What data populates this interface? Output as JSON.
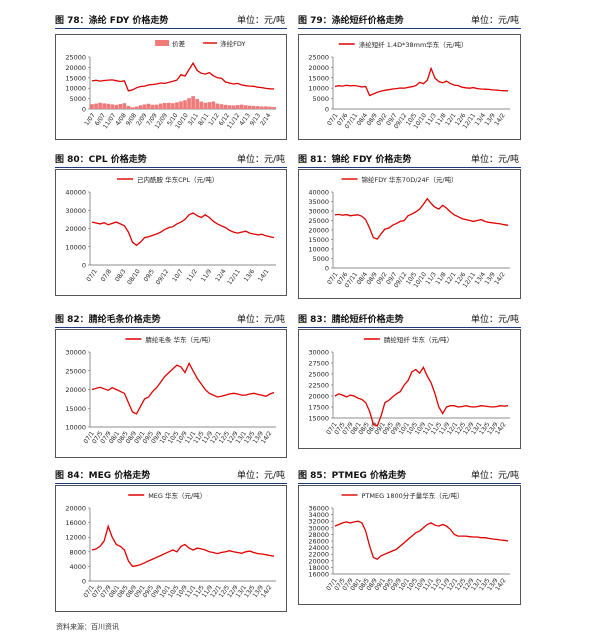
{
  "colors": {
    "line": "#e00000",
    "bar": "#f07a7a",
    "header_rule": "#1f3a78"
  },
  "footer": "资料来源：百川资讯",
  "charts": [
    {
      "title": "图 78：涤纶 FDY 价格走势",
      "unit": "单位：元/吨"
    },
    {
      "title": "图 79：涤纶短纤价格走势",
      "unit": "单位：元/吨"
    },
    {
      "title": "图 80：CPL 价格走势",
      "unit": "单位：元/吨"
    },
    {
      "title": "图 81：锦纶 FDY 价格走势",
      "unit": "单位：元/吨"
    },
    {
      "title": "图 82：腈纶毛条价格走势",
      "unit": "单位：元/吨"
    },
    {
      "title": "图 83：腈纶短纤价格走势",
      "unit": "单位：元/吨"
    },
    {
      "title": "图 84：MEG 价格走势",
      "unit": "单位：元/吨"
    },
    {
      "title": "图 85：PTMEG 价格走势",
      "unit": "单位：元/吨"
    }
  ],
  "chart_data": [
    {
      "type": "line",
      "legend": [
        "价差",
        "涤纶FDY"
      ],
      "yticks": [
        0,
        5000,
        10000,
        15000,
        20000,
        25000
      ],
      "ylim": [
        0,
        25000
      ],
      "xticks": [
        "1/07",
        "6/07",
        "11/07",
        "4/08",
        "9/08",
        "2/09",
        "7/09",
        "12/09",
        "5/10",
        "10/10",
        "3/11",
        "8/11",
        "1/12",
        "6/12",
        "11/12",
        "4/13",
        "9/13",
        "2/14"
      ],
      "series": [
        {
          "name": "涤纶FDY",
          "kind": "line",
          "values": [
            13500,
            13800,
            13400,
            13700,
            13900,
            14000,
            13600,
            13200,
            13500,
            8700,
            9200,
            10200,
            10800,
            11000,
            11600,
            11800,
            12000,
            12500,
            12300,
            12800,
            13300,
            13900,
            16500,
            15800,
            19000,
            22000,
            18500,
            17200,
            16800,
            17500,
            16000,
            15000,
            14800,
            13000,
            12500,
            12000,
            12300,
            11600,
            11200,
            11000,
            10900,
            10500,
            10300,
            9900,
            9700,
            9600
          ]
        },
        {
          "name": "价差",
          "kind": "bar",
          "values": [
            2300,
            2600,
            3000,
            2700,
            2500,
            2200,
            2000,
            2400,
            2800,
            1500,
            800,
            1200,
            1800,
            2200,
            2500,
            2000,
            2100,
            2600,
            2900,
            3000,
            2800,
            3200,
            3700,
            4200,
            5200,
            6200,
            4800,
            3600,
            3000,
            3300,
            3600,
            2600,
            2300,
            2000,
            1800,
            1700,
            1900,
            2100,
            1800,
            1600,
            1500,
            1400,
            1200,
            1300,
            1100,
            1000
          ]
        }
      ]
    },
    {
      "type": "line",
      "legend": [
        "涤纶短纤 1.4D*38mm华东（元/吨）"
      ],
      "yticks": [
        0,
        5000,
        10000,
        15000,
        20000,
        25000
      ],
      "ylim": [
        0,
        25000
      ],
      "xticks": [
        "07/1",
        "07/6",
        "07/11",
        "08/4",
        "08/9",
        "09/2",
        "09/7",
        "09/12",
        "10/5",
        "10/10",
        "11/3",
        "11/8",
        "12/1",
        "12/6",
        "12/11",
        "13/4",
        "13/9",
        "14/2"
      ],
      "series": [
        {
          "name": "涤纶短纤 1.4D*38mm华东（元/吨）",
          "kind": "line",
          "values": [
            10800,
            11200,
            11000,
            11400,
            11100,
            11300,
            11000,
            10600,
            10800,
            6500,
            7200,
            8100,
            8600,
            9000,
            9300,
            9600,
            9800,
            10100,
            10000,
            10400,
            10700,
            11200,
            12800,
            12200,
            13800,
            19500,
            14800,
            13200,
            12600,
            13400,
            12200,
            11500,
            11300,
            10500,
            10200,
            10000,
            10300,
            9800,
            9600,
            9500,
            9400,
            9200,
            9100,
            8900,
            8800,
            8700
          ]
        }
      ]
    },
    {
      "type": "line",
      "legend": [
        "己内酰胺 华东CPL（元/吨）"
      ],
      "yticks": [
        0,
        10000,
        20000,
        30000,
        40000
      ],
      "ylim": [
        0,
        40000
      ],
      "xticks": [
        "07/1",
        "07/8",
        "08/3",
        "08/10",
        "09/5",
        "09/12",
        "10/7",
        "11/2",
        "11/9",
        "12/4",
        "12/11",
        "13/6",
        "14/1"
      ],
      "series": [
        {
          "name": "己内酰胺 华东CPL（元/吨）",
          "kind": "line",
          "values": [
            23500,
            23000,
            22500,
            23200,
            22000,
            22800,
            23500,
            22500,
            21500,
            18000,
            12500,
            10800,
            12500,
            15000,
            15500,
            16200,
            17000,
            18000,
            19500,
            20500,
            21000,
            22500,
            23500,
            25000,
            27500,
            28500,
            27000,
            26000,
            27500,
            26000,
            24000,
            22500,
            21500,
            20500,
            19000,
            18000,
            17500,
            18000,
            18500,
            17500,
            17000,
            16500,
            16800,
            16000,
            15500,
            15000
          ]
        }
      ]
    },
    {
      "type": "line",
      "legend": [
        "锦纶FDY 华东70D/24F（元/吨）"
      ],
      "yticks": [
        0,
        5000,
        10000,
        15000,
        20000,
        25000,
        30000,
        35000,
        40000
      ],
      "ylim": [
        0,
        40000
      ],
      "xticks": [
        "07/1",
        "07/6",
        "07/11",
        "08/4",
        "08/9",
        "09/2",
        "09/7",
        "09/12",
        "10/5",
        "10/10",
        "11/3",
        "11/8",
        "12/1",
        "12/6",
        "12/11",
        "13/4",
        "13/9",
        "14/2"
      ],
      "series": [
        {
          "name": "锦纶FDY 华东70D/24F（元/吨）",
          "kind": "line",
          "values": [
            28000,
            28200,
            27800,
            28100,
            27500,
            27800,
            28000,
            27200,
            25500,
            21000,
            16000,
            15200,
            18000,
            20500,
            21000,
            22500,
            23500,
            24500,
            25000,
            27500,
            28500,
            29500,
            31000,
            33500,
            36500,
            34000,
            32000,
            31000,
            33000,
            31500,
            29500,
            28000,
            27000,
            26000,
            25500,
            25000,
            24500,
            25000,
            25500,
            24500,
            24000,
            23800,
            23500,
            23200,
            22800,
            22500
          ]
        }
      ]
    },
    {
      "type": "line",
      "legend": [
        "腈纶毛条 华东（元/吨）"
      ],
      "yticks": [
        10000,
        15000,
        20000,
        25000,
        30000
      ],
      "ylim": [
        10000,
        30000
      ],
      "xticks": [
        "07/1",
        "07/5",
        "07/9",
        "08/1",
        "08/5",
        "08/9",
        "09/1",
        "09/5",
        "09/9",
        "10/1",
        "10/5",
        "10/9",
        "11/1",
        "11/5",
        "11/9",
        "12/1",
        "12/5",
        "12/9",
        "13/1",
        "13/5",
        "13/9",
        "14/2"
      ],
      "series": [
        {
          "name": "腈纶毛条 华东（元/吨）",
          "kind": "line",
          "values": [
            20000,
            20300,
            20600,
            20200,
            19800,
            20500,
            20000,
            19500,
            19000,
            16500,
            14000,
            13500,
            15500,
            17500,
            18000,
            19500,
            20500,
            22000,
            23500,
            24500,
            25500,
            26500,
            26000,
            24500,
            27000,
            25000,
            23000,
            21500,
            20000,
            19000,
            18500,
            18000,
            18200,
            18500,
            18800,
            19000,
            18800,
            18500,
            18500,
            18800,
            19000,
            18700,
            18500,
            18200,
            18800,
            19200
          ]
        }
      ]
    },
    {
      "type": "line",
      "legend": [
        "腈纶短纤 华东（元/吨）"
      ],
      "yticks": [
        15000,
        17500,
        20000,
        22500,
        25000,
        27500,
        30000
      ],
      "ylim": [
        15000,
        30000
      ],
      "xticks": [
        "07/1",
        "07/5",
        "07/9",
        "08/1",
        "08/5",
        "08/9",
        "09/1",
        "09/5",
        "09/9",
        "10/1",
        "10/5",
        "10/9",
        "11/1",
        "11/5",
        "11/9",
        "12/1",
        "12/5",
        "12/9",
        "13/1",
        "13/5",
        "13/9",
        "14/2"
      ],
      "series": [
        {
          "name": "腈纶短纤 华东（元/吨）",
          "kind": "line",
          "values": [
            20000,
            20500,
            20200,
            19800,
            20200,
            20000,
            19500,
            19200,
            18500,
            16500,
            13500,
            13200,
            15500,
            18500,
            19000,
            19800,
            20500,
            21000,
            22500,
            23500,
            25500,
            26000,
            25200,
            26500,
            24500,
            23000,
            20500,
            17500,
            16000,
            17500,
            17800,
            17800,
            17500,
            17600,
            17800,
            17600,
            17500,
            17600,
            17800,
            17700,
            17600,
            17500,
            17600,
            17800,
            17700,
            17800
          ]
        }
      ]
    },
    {
      "type": "line",
      "legend": [
        "MEG 华东（元/吨）"
      ],
      "yticks": [
        0,
        4000,
        8000,
        12000,
        16000,
        20000
      ],
      "ylim": [
        0,
        20000
      ],
      "xticks": [
        "07/1",
        "07/5",
        "07/9",
        "08/1",
        "08/5",
        "08/9",
        "09/1",
        "09/5",
        "09/9",
        "10/1",
        "10/5",
        "10/9",
        "11/1",
        "11/5",
        "11/9",
        "12/1",
        "12/5",
        "12/9",
        "13/1",
        "13/5",
        "13/9",
        "14/2"
      ],
      "series": [
        {
          "name": "MEG 华东（元/吨）",
          "kind": "line",
          "values": [
            8500,
            8800,
            9500,
            11000,
            15000,
            12000,
            10000,
            9500,
            8500,
            5500,
            4000,
            4200,
            4500,
            5000,
            5500,
            6000,
            6500,
            7000,
            7500,
            8000,
            8500,
            8000,
            9500,
            10000,
            9000,
            8500,
            9000,
            8800,
            8500,
            8000,
            7800,
            7500,
            7800,
            8000,
            8300,
            8000,
            7800,
            7600,
            8000,
            8200,
            7800,
            7500,
            7400,
            7200,
            7000,
            6800
          ]
        }
      ]
    },
    {
      "type": "line",
      "legend": [
        "PTMEG 1800分子量华东（元/吨）"
      ],
      "yticks": [
        16000,
        18000,
        20000,
        22000,
        24000,
        26000,
        28000,
        30000,
        32000,
        34000,
        36000
      ],
      "ylim": [
        16000,
        36000
      ],
      "xticks": [
        "07/1",
        "07/5",
        "07/9",
        "08/1",
        "08/5",
        "08/9",
        "09/1",
        "09/5",
        "09/9",
        "10/1",
        "10/5",
        "10/9",
        "11/1",
        "11/5",
        "11/9",
        "12/1",
        "12/5",
        "12/9",
        "13/1",
        "13/5",
        "13/9",
        "14/2"
      ],
      "series": [
        {
          "name": "PTMEG 1800分子量华东（元/吨）",
          "kind": "line",
          "values": [
            30500,
            31000,
            31500,
            31800,
            31500,
            31800,
            32000,
            31500,
            29000,
            24500,
            21000,
            20500,
            21500,
            22000,
            22500,
            23000,
            23500,
            24500,
            25500,
            26500,
            27500,
            28500,
            29000,
            30000,
            31000,
            31500,
            30800,
            30500,
            31000,
            30500,
            29500,
            28000,
            27500,
            27500,
            27500,
            27300,
            27200,
            27200,
            27000,
            27000,
            26800,
            26600,
            26500,
            26300,
            26200,
            26000
          ]
        }
      ]
    }
  ]
}
